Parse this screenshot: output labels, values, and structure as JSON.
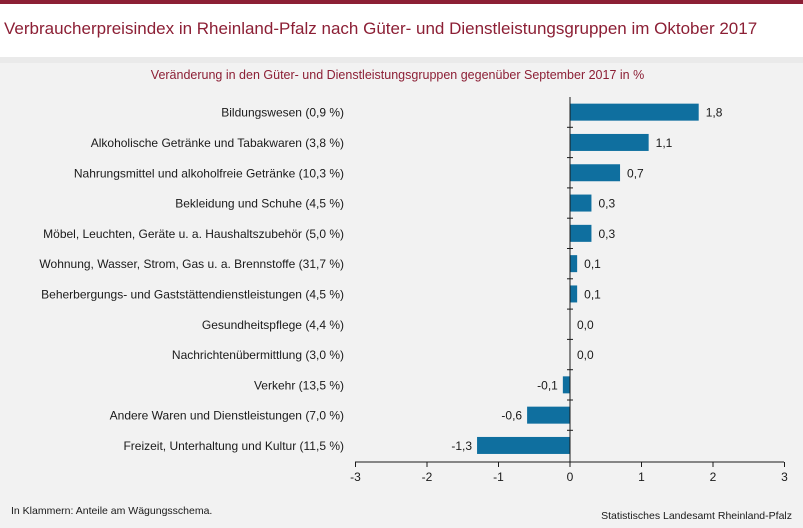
{
  "title": "Verbraucherpreisindex in Rheinland-Pfalz nach Güter- und Dienstleistungsgruppen im Oktober 2017",
  "subtitle": "Veränderung in den Güter- und Dienstleistungsgruppen gegenüber September 2017 in %",
  "footnote": "In Klammern: Anteile am Wägungsschema.",
  "source": "Statistisches Landesamt Rheinland-Pfalz",
  "colors": {
    "title": "#8c1f35",
    "bar": "#0f6f9f",
    "background": "#f2f2f2"
  },
  "chart_data": {
    "type": "bar",
    "orientation": "horizontal",
    "categories": [
      "Bildungswesen (0,9 %)",
      "Alkoholische Getränke und Tabakwaren (3,8 %)",
      "Nahrungsmittel und alkoholfreie Getränke (10,3 %)",
      "Bekleidung und Schuhe (4,5 %)",
      "Möbel, Leuchten, Geräte u. a. Haushaltszubehör (5,0 %)",
      "Wohnung, Wasser, Strom, Gas u. a. Brennstoffe (31,7 %)",
      "Beherbergungs- und Gaststättendienstleistungen (4,5 %)",
      "Gesundheitspflege (4,4 %)",
      "Nachrichtenübermittlung (3,0 %)",
      "Verkehr (13,5 %)",
      "Andere Waren und Dienstleistungen (7,0 %)",
      "Freizeit, Unterhaltung und Kultur (11,5 %)"
    ],
    "values": [
      1.8,
      1.1,
      0.7,
      0.3,
      0.3,
      0.1,
      0.1,
      0.0,
      0.0,
      -0.1,
      -0.6,
      -1.3
    ],
    "value_labels": [
      "1,8",
      "1,1",
      "0,7",
      "0,3",
      "0,3",
      "0,1",
      "0,1",
      "0,0",
      "0,0",
      "-0,1",
      "-0,6",
      "-1,3"
    ],
    "xlim": [
      -3,
      3
    ],
    "xticks": [
      -3,
      -2,
      -1,
      0,
      1,
      2,
      3
    ],
    "xtick_labels": [
      "-3",
      "-2",
      "-1",
      "0",
      "1",
      "2",
      "3"
    ],
    "grid": false,
    "legend": "none"
  }
}
